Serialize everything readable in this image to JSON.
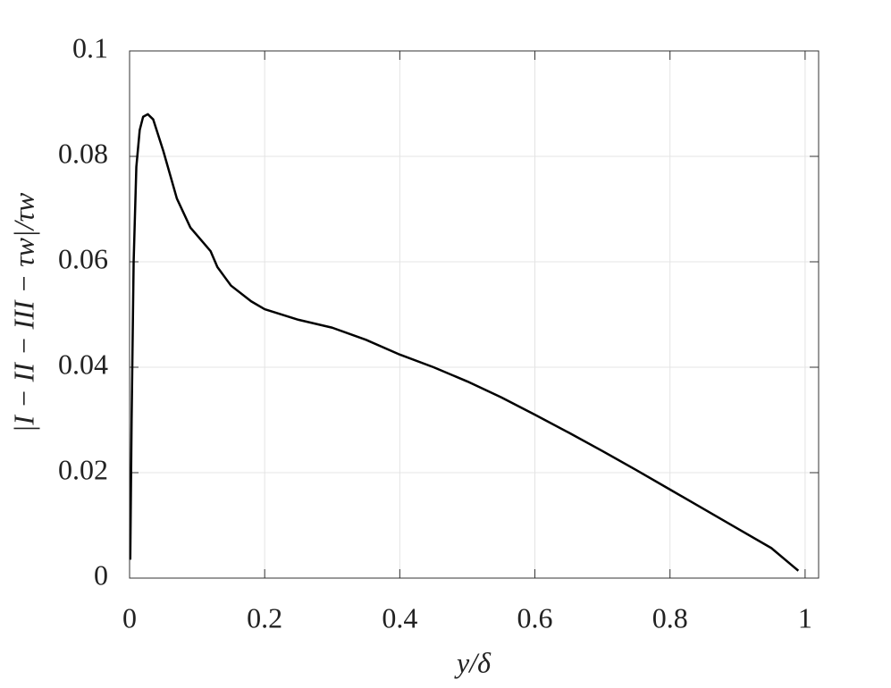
{
  "chart_data": {
    "type": "line",
    "xlabel": "y/δ",
    "ylabel": "|I − II − III − τw|/τw",
    "x": [
      0.001,
      0.003,
      0.006,
      0.01,
      0.015,
      0.02,
      0.027,
      0.035,
      0.05,
      0.07,
      0.09,
      0.11,
      0.12,
      0.13,
      0.15,
      0.18,
      0.2,
      0.25,
      0.3,
      0.35,
      0.4,
      0.45,
      0.5,
      0.55,
      0.6,
      0.65,
      0.7,
      0.75,
      0.8,
      0.85,
      0.9,
      0.95,
      0.99
    ],
    "series": [
      {
        "color": "#000000",
        "values": [
          0.0035,
          0.03,
          0.06,
          0.078,
          0.085,
          0.0875,
          0.088,
          0.087,
          0.081,
          0.072,
          0.0665,
          0.0635,
          0.062,
          0.059,
          0.0555,
          0.0525,
          0.051,
          0.049,
          0.0475,
          0.0452,
          0.0424,
          0.04,
          0.0373,
          0.0343,
          0.031,
          0.0276,
          0.0241,
          0.0205,
          0.0168,
          0.0131,
          0.0094,
          0.0057,
          0.0014
        ]
      }
    ],
    "xlim": [
      0,
      1.02
    ],
    "ylim": [
      0,
      0.1
    ],
    "xticks": [
      0,
      0.2,
      0.4,
      0.6,
      0.8,
      1
    ],
    "yticks": [
      0,
      0.02,
      0.04,
      0.06,
      0.08,
      0.1
    ],
    "grid": true
  }
}
